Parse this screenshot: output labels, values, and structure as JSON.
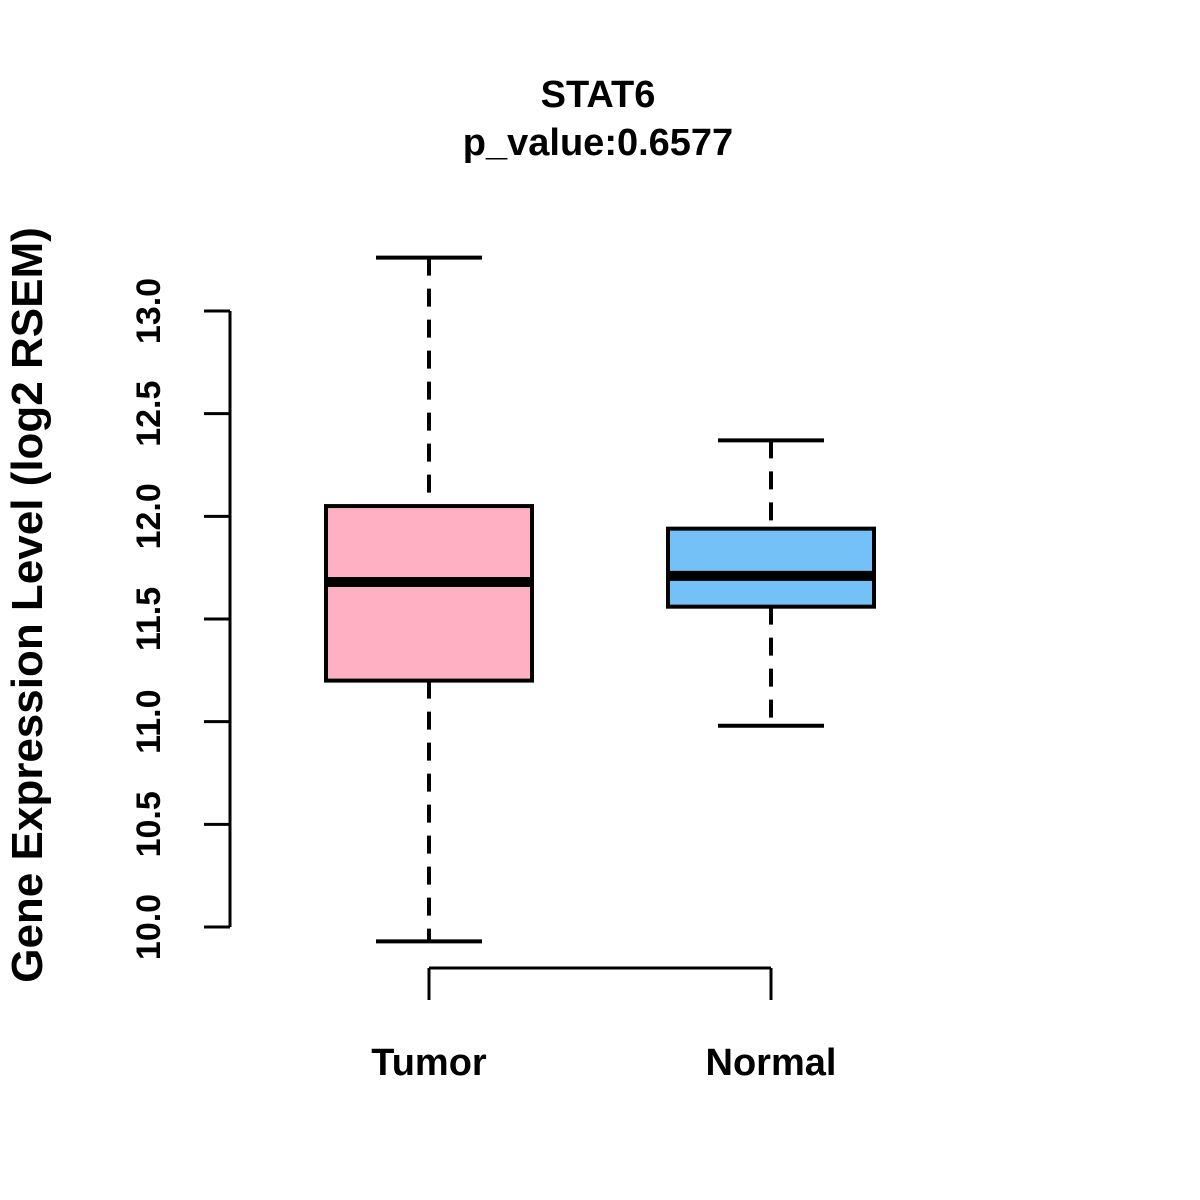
{
  "chart_data": {
    "type": "boxplot",
    "title": "STAT6",
    "subtitle": "p_value:0.6577",
    "ylabel": "Gene Expression Level (log2 RSEM)",
    "xlabel": "",
    "ylim": [
      10.0,
      13.0
    ],
    "yticks": [
      10.0,
      10.5,
      11.0,
      11.5,
      12.0,
      12.5,
      13.0
    ],
    "ytick_labels": [
      "10.0",
      "10.5",
      "11.0",
      "11.5",
      "12.0",
      "12.5",
      "13.0"
    ],
    "categories": [
      "Tumor",
      "Normal"
    ],
    "grid": "off",
    "legend": "none",
    "series": [
      {
        "name": "Tumor",
        "whisker_low": 9.93,
        "q1": 11.2,
        "median": 11.68,
        "q3": 12.05,
        "whisker_high": 13.26,
        "fill": "#FFB0C3"
      },
      {
        "name": "Normal",
        "whisker_low": 10.98,
        "q1": 11.56,
        "median": 11.71,
        "q3": 11.94,
        "whisker_high": 12.37,
        "fill": "#74C1F7"
      }
    ],
    "colors": {
      "stroke": "#000000",
      "median": "#000000",
      "background": "#FFFFFF",
      "tumor_fill": "#FFB0C3",
      "normal_fill": "#74C1F7"
    }
  }
}
